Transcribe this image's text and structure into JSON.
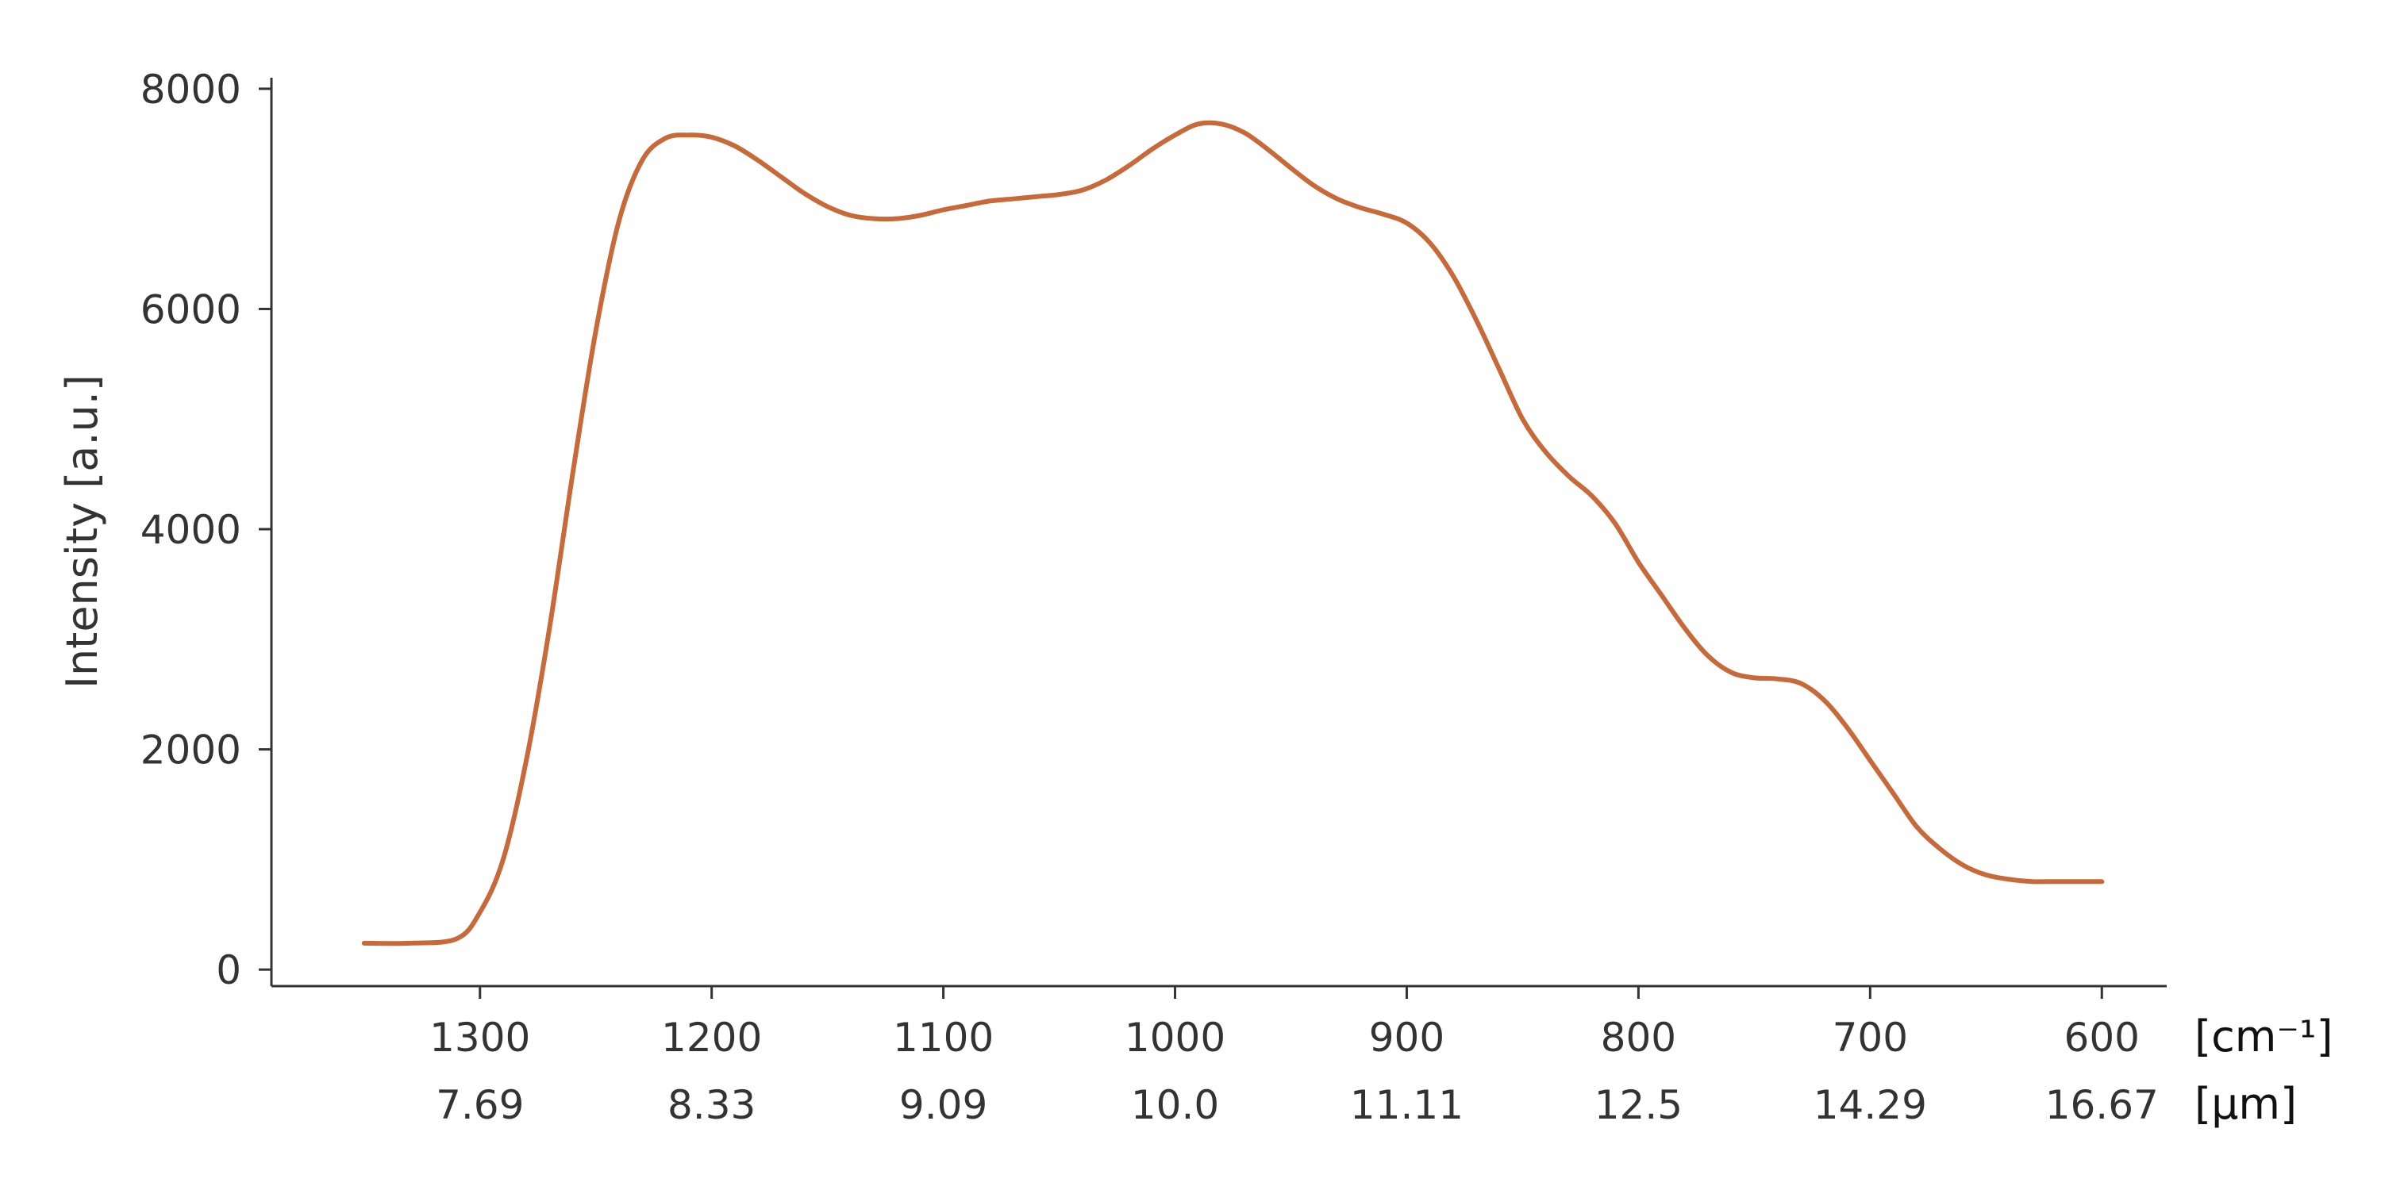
{
  "chart_data": {
    "type": "line",
    "title": "",
    "ylabel": "Intensity [a.u.]",
    "xlabel": "",
    "x_unit_primary": "[cm⁻¹]",
    "x_unit_secondary": "[µm]",
    "x_reversed": true,
    "xlim": [
      1390,
      572
    ],
    "ylim": [
      -150,
      8100
    ],
    "x_ticks": [
      1300,
      1200,
      1100,
      1000,
      900,
      800,
      700,
      600
    ],
    "x_tick_labels": [
      "1300",
      "1200",
      "1100",
      "1000",
      "900",
      "800",
      "700",
      "600"
    ],
    "x_secondary_tick_labels": [
      "7.69",
      "8.33",
      "9.09",
      "10.0",
      "11.11",
      "12.5",
      "14.29",
      "16.67"
    ],
    "y_ticks": [
      0,
      2000,
      4000,
      6000,
      8000
    ],
    "y_tick_labels": [
      "0",
      "2000",
      "4000",
      "6000",
      "8000"
    ],
    "grid": false,
    "legend": "none",
    "series": [
      {
        "color": "#c8693a",
        "x": [
          1350,
          1330,
          1310,
          1300,
          1290,
          1280,
          1270,
          1260,
          1250,
          1240,
          1230,
          1220,
          1210,
          1200,
          1190,
          1180,
          1170,
          1160,
          1150,
          1140,
          1130,
          1120,
          1110,
          1100,
          1090,
          1080,
          1070,
          1060,
          1050,
          1040,
          1030,
          1020,
          1010,
          1000,
          990,
          980,
          970,
          960,
          950,
          940,
          930,
          920,
          910,
          900,
          890,
          880,
          870,
          860,
          850,
          840,
          830,
          820,
          810,
          800,
          790,
          780,
          770,
          760,
          750,
          740,
          730,
          720,
          710,
          700,
          690,
          680,
          670,
          660,
          650,
          640,
          630,
          620,
          610,
          600
        ],
        "y": [
          240,
          240,
          280,
          520,
          1000,
          1900,
          3100,
          4500,
          5800,
          6800,
          7350,
          7550,
          7580,
          7560,
          7480,
          7350,
          7200,
          7050,
          6930,
          6850,
          6820,
          6820,
          6850,
          6900,
          6940,
          6980,
          7000,
          7020,
          7040,
          7080,
          7170,
          7300,
          7450,
          7580,
          7680,
          7680,
          7600,
          7450,
          7280,
          7120,
          7000,
          6920,
          6860,
          6780,
          6600,
          6300,
          5900,
          5450,
          5000,
          4700,
          4480,
          4300,
          4050,
          3700,
          3400,
          3100,
          2850,
          2700,
          2650,
          2640,
          2600,
          2450,
          2200,
          1900,
          1600,
          1300,
          1100,
          950,
          860,
          820,
          800,
          800,
          800,
          800
        ]
      }
    ]
  }
}
